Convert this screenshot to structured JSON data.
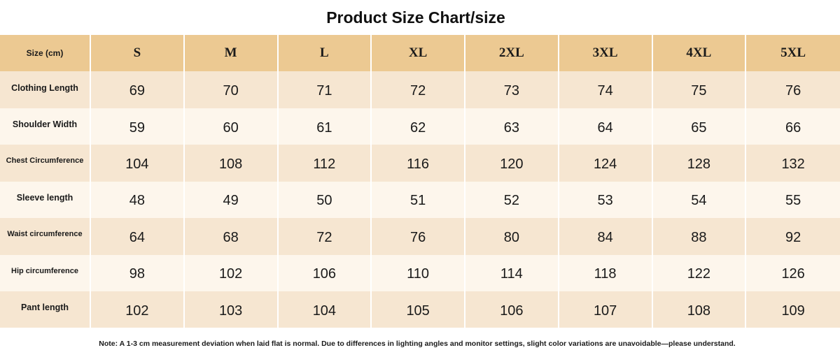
{
  "title": "Product Size Chart/size",
  "table": {
    "header_label": "Size (cm)",
    "sizes": [
      "S",
      "M",
      "L",
      "XL",
      "2XL",
      "3XL",
      "4XL",
      "5XL"
    ],
    "rows": [
      {
        "label": "Clothing Length",
        "values": [
          "69",
          "70",
          "71",
          "72",
          "73",
          "74",
          "75",
          "76"
        ]
      },
      {
        "label": "Shoulder Width",
        "values": [
          "59",
          "60",
          "61",
          "62",
          "63",
          "64",
          "65",
          "66"
        ]
      },
      {
        "label": "Chest Circumference",
        "values": [
          "104",
          "108",
          "112",
          "116",
          "120",
          "124",
          "128",
          "132"
        ]
      },
      {
        "label": "Sleeve length",
        "values": [
          "48",
          "49",
          "50",
          "51",
          "52",
          "53",
          "54",
          "55"
        ]
      },
      {
        "label": "Waist circumference",
        "values": [
          "64",
          "68",
          "72",
          "76",
          "80",
          "84",
          "88",
          "92"
        ]
      },
      {
        "label": "Hip circumference",
        "values": [
          "98",
          "102",
          "106",
          "110",
          "114",
          "118",
          "122",
          "126"
        ]
      },
      {
        "label": "Pant length",
        "values": [
          "102",
          "103",
          "104",
          "105",
          "106",
          "107",
          "108",
          "109"
        ]
      }
    ]
  },
  "note": "Note: A 1-3 cm measurement deviation when laid flat is normal. Due to differences in lighting angles and monitor settings, slight color variations are unavoidable—please understand.",
  "colors": {
    "header_bg": "#ecc992",
    "row_odd_bg": "#f6e6d1",
    "row_even_bg": "#fdf6ec"
  }
}
